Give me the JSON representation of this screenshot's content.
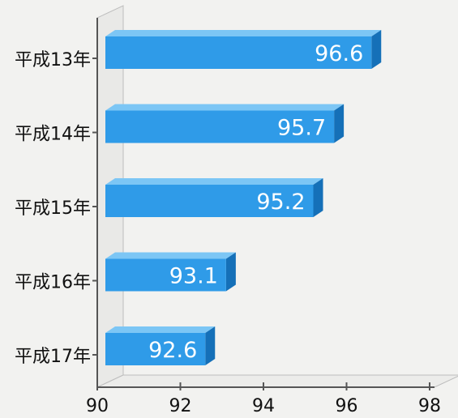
{
  "chart_data": {
    "type": "bar",
    "orientation": "horizontal",
    "categories": [
      "平成13年",
      "平成14年",
      "平成15年",
      "平成16年",
      "平成17年"
    ],
    "values": [
      96.6,
      95.7,
      95.2,
      93.1,
      92.6
    ],
    "value_labels": [
      "96.6",
      "95.7",
      "95.2",
      "93.1",
      "92.6"
    ],
    "xlim": [
      90,
      98
    ],
    "ticks": [
      90,
      92,
      94,
      96,
      98
    ],
    "tick_labels": [
      "90",
      "92",
      "94",
      "96",
      "98"
    ],
    "title": "",
    "xlabel": "",
    "ylabel": "",
    "grid": false,
    "style": "3d",
    "bar_color": "#2f9be8",
    "bar_top_color": "#7cc6f5",
    "bar_side_color": "#1570b8"
  }
}
